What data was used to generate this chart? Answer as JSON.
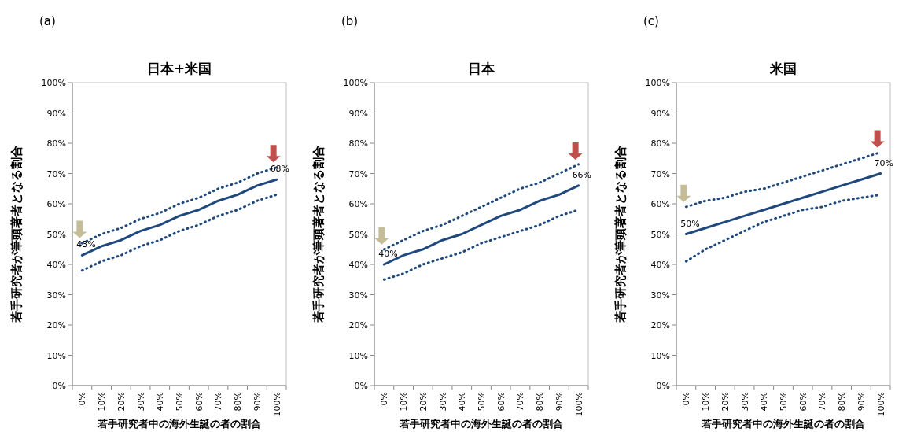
{
  "chart_data": [
    {
      "type": "line",
      "title": "日本+米国",
      "xlabel": "若手研究者中の海外生誕の者の割合",
      "ylabel": "若手研究者が筆頭著者となる割合",
      "categories": [
        "0%",
        "10%",
        "20%",
        "30%",
        "40%",
        "50%",
        "60%",
        "70%",
        "80%",
        "90%",
        "100%"
      ],
      "ylim": [
        0,
        100
      ],
      "yticks": [
        {
          "value": 0,
          "label": "0%"
        },
        {
          "value": 10,
          "label": "10%"
        },
        {
          "value": 20,
          "label": "20%"
        },
        {
          "value": 30,
          "label": "30%"
        },
        {
          "value": 40,
          "label": "40%"
        },
        {
          "value": 50,
          "label": "50%"
        },
        {
          "value": 60,
          "label": "60%"
        },
        {
          "value": 70,
          "label": "70%"
        },
        {
          "value": 80,
          "label": "80%"
        },
        {
          "value": 90,
          "label": "90%"
        },
        {
          "value": 100,
          "label": "100%"
        }
      ],
      "series": [
        {
          "color": "#1f497d",
          "line_style": "solid",
          "values": [
            43,
            46,
            48,
            51,
            53,
            56,
            58,
            61,
            63,
            66,
            68
          ]
        },
        {
          "color": "#1f497d",
          "line_style": "dotted",
          "values": [
            47,
            50,
            52,
            55,
            57,
            60,
            62,
            65,
            67,
            70,
            72
          ]
        },
        {
          "color": "#1f497d",
          "line_style": "dotted",
          "values": [
            38,
            41,
            43,
            46,
            48,
            51,
            53,
            56,
            58,
            61,
            63
          ]
        }
      ],
      "annotations": [
        "(a)",
        {
          "text": "43%",
          "x": "0%",
          "y": 43
        },
        {
          "text": "68%",
          "x": "100%",
          "y": 68
        }
      ]
    },
    {
      "type": "line",
      "title": "日本",
      "xlabel": "若手研究者中の海外生誕の者の割合",
      "ylabel": "若手研究者が筆頭著者となる割合",
      "categories": [
        "0%",
        "10%",
        "20%",
        "30%",
        "40%",
        "50%",
        "60%",
        "70%",
        "80%",
        "90%",
        "100%"
      ],
      "ylim": [
        0,
        100
      ],
      "yticks": [
        {
          "value": 0,
          "label": "0%"
        },
        {
          "value": 10,
          "label": "10%"
        },
        {
          "value": 20,
          "label": "20%"
        },
        {
          "value": 30,
          "label": "30%"
        },
        {
          "value": 40,
          "label": "40%"
        },
        {
          "value": 50,
          "label": "50%"
        },
        {
          "value": 60,
          "label": "60%"
        },
        {
          "value": 70,
          "label": "70%"
        },
        {
          "value": 80,
          "label": "80%"
        },
        {
          "value": 90,
          "label": "90%"
        },
        {
          "value": 100,
          "label": "100%"
        }
      ],
      "series": [
        {
          "color": "#1f497d",
          "line_style": "solid",
          "values": [
            40,
            43,
            45,
            48,
            50,
            53,
            56,
            58,
            61,
            63,
            66
          ]
        },
        {
          "color": "#1f497d",
          "line_style": "dotted",
          "values": [
            45,
            48,
            51,
            53,
            56,
            59,
            62,
            65,
            67,
            70,
            73
          ]
        },
        {
          "color": "#1f497d",
          "line_style": "dotted",
          "values": [
            35,
            37,
            40,
            42,
            44,
            47,
            49,
            51,
            53,
            56,
            58
          ]
        }
      ],
      "annotations": [
        "(b)",
        {
          "text": "40%",
          "x": "0%",
          "y": 40
        },
        {
          "text": "66%",
          "x": "100%",
          "y": 66
        }
      ]
    },
    {
      "type": "line",
      "title": "米国",
      "xlabel": "若手研究者中の海外生誕の者の割合",
      "ylabel": "若手研究者が筆頭著者となる割合",
      "categories": [
        "0%",
        "10%",
        "20%",
        "30%",
        "40%",
        "50%",
        "60%",
        "70%",
        "80%",
        "90%",
        "100%"
      ],
      "ylim": [
        0,
        100
      ],
      "yticks": [
        {
          "value": 0,
          "label": "0%"
        },
        {
          "value": 10,
          "label": "10%"
        },
        {
          "value": 20,
          "label": "20%"
        },
        {
          "value": 30,
          "label": "30%"
        },
        {
          "value": 40,
          "label": "40%"
        },
        {
          "value": 50,
          "label": "50%"
        },
        {
          "value": 60,
          "label": "60%"
        },
        {
          "value": 70,
          "label": "70%"
        },
        {
          "value": 80,
          "label": "80%"
        },
        {
          "value": 90,
          "label": "90%"
        },
        {
          "value": 100,
          "label": "100%"
        }
      ],
      "series": [
        {
          "color": "#1f497d",
          "line_style": "solid",
          "values": [
            50,
            52,
            54,
            56,
            58,
            60,
            62,
            64,
            66,
            68,
            70
          ]
        },
        {
          "color": "#1f497d",
          "line_style": "dotted",
          "values": [
            59,
            61,
            62,
            64,
            65,
            67,
            69,
            71,
            73,
            75,
            77
          ]
        },
        {
          "color": "#1f497d",
          "line_style": "dotted",
          "values": [
            41,
            45,
            48,
            51,
            54,
            56,
            58,
            59,
            61,
            62,
            63
          ]
        }
      ],
      "annotations": [
        "(c)",
        {
          "text": "50%",
          "x": "0%",
          "y": 50
        },
        {
          "text": "70%",
          "x": "100%",
          "y": 70
        }
      ]
    }
  ]
}
